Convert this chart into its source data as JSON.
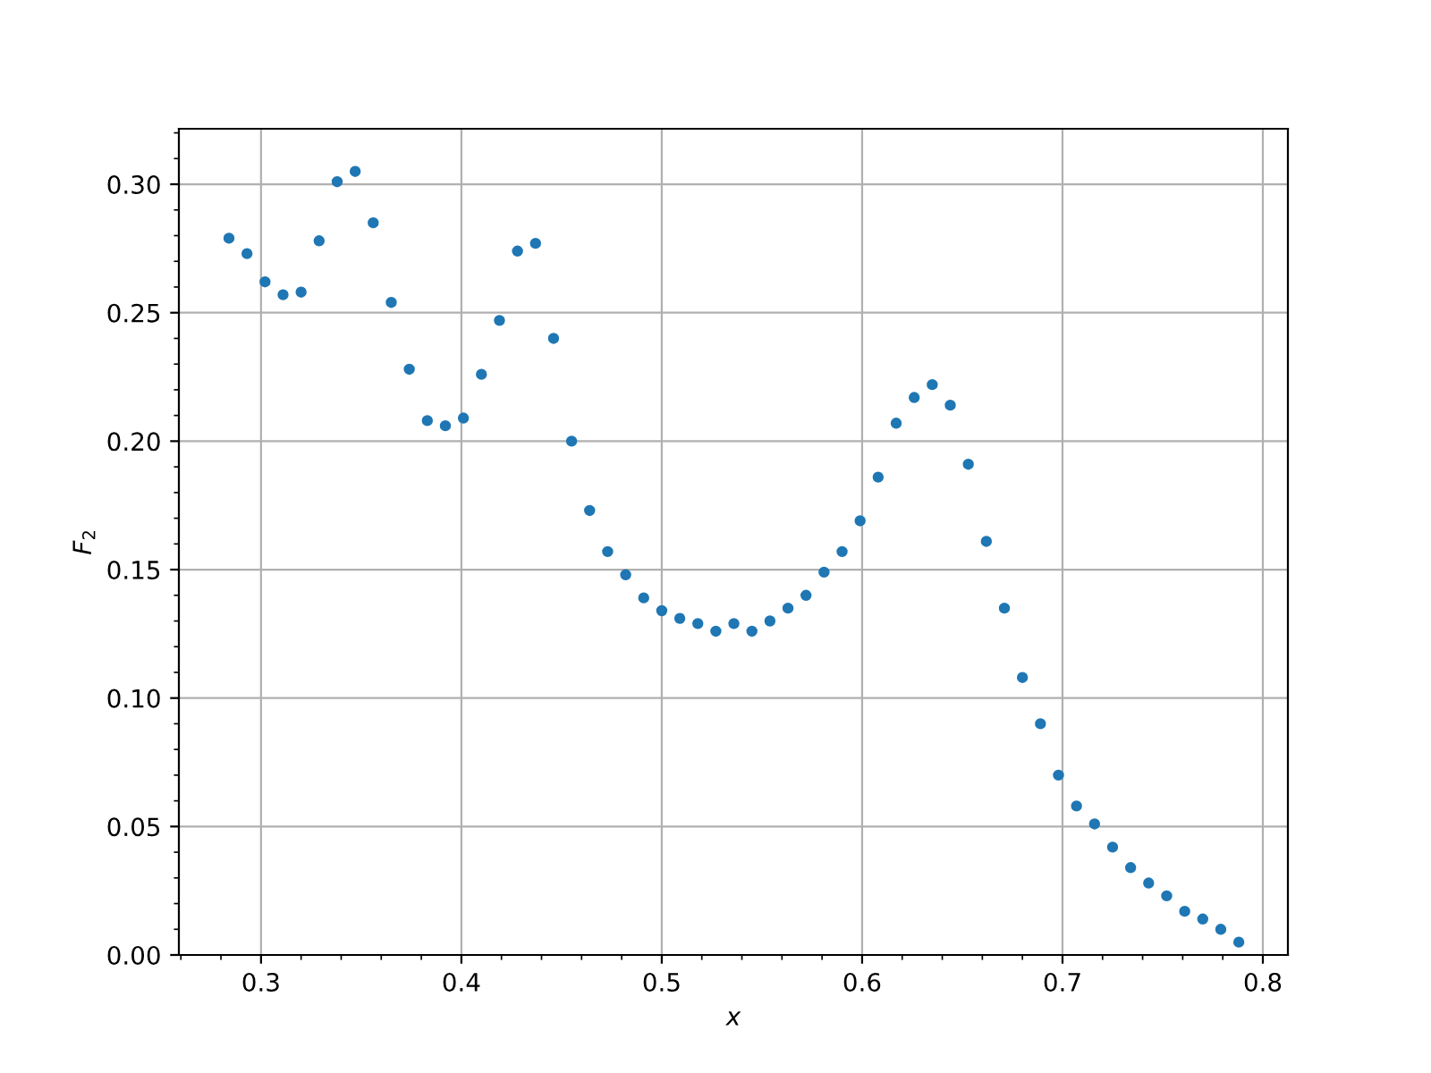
{
  "chart_data": {
    "type": "scatter",
    "xlabel": "x",
    "ylabel": "F$_{2}$",
    "marker": "circle",
    "grid": true,
    "xlim": [
      0.259,
      0.8125
    ],
    "ylim": [
      0,
      0.3216
    ],
    "xticks": [
      0.3,
      0.4,
      0.5,
      0.6,
      0.7,
      0.8
    ],
    "yticks": [
      {
        "value": 0,
        "label": "0.00"
      },
      {
        "value": 0.05,
        "label": "0.05"
      },
      {
        "value": 0.1,
        "label": "0.10"
      },
      {
        "value": 0.15,
        "label": "0.15"
      },
      {
        "value": 0.2,
        "label": "0.20"
      },
      {
        "value": 0.25,
        "label": "0.25"
      },
      {
        "value": 0.3,
        "label": "0.30"
      }
    ],
    "series": [
      {
        "color": "#1f77b4",
        "x": [
          0.284,
          0.293,
          0.302,
          0.311,
          0.32,
          0.329,
          0.338,
          0.347,
          0.356,
          0.365,
          0.374,
          0.383,
          0.392,
          0.401,
          0.41,
          0.419,
          0.428,
          0.437,
          0.446,
          0.455,
          0.464,
          0.473,
          0.482,
          0.491,
          0.5,
          0.509,
          0.518,
          0.527,
          0.536,
          0.545,
          0.554,
          0.563,
          0.572,
          0.581,
          0.59,
          0.599,
          0.608,
          0.617,
          0.626,
          0.635,
          0.644,
          0.653,
          0.662,
          0.671,
          0.68,
          0.689,
          0.698,
          0.707,
          0.716,
          0.725,
          0.734,
          0.743,
          0.752,
          0.761,
          0.77,
          0.779,
          0.788
        ],
        "values": [
          0.279,
          0.273,
          0.262,
          0.257,
          0.258,
          0.278,
          0.301,
          0.305,
          0.285,
          0.254,
          0.228,
          0.208,
          0.206,
          0.209,
          0.226,
          0.247,
          0.274,
          0.277,
          0.24,
          0.2,
          0.173,
          0.157,
          0.148,
          0.139,
          0.134,
          0.131,
          0.129,
          0.126,
          0.129,
          0.126,
          0.13,
          0.135,
          0.14,
          0.149,
          0.157,
          0.169,
          0.186,
          0.207,
          0.217,
          0.222,
          0.214,
          0.191,
          0.161,
          0.135,
          0.108,
          0.09,
          0.07,
          0.058,
          0.051,
          0.042,
          0.034,
          0.028,
          0.023,
          0.017,
          0.014,
          0.01,
          0.005
        ]
      }
    ]
  }
}
